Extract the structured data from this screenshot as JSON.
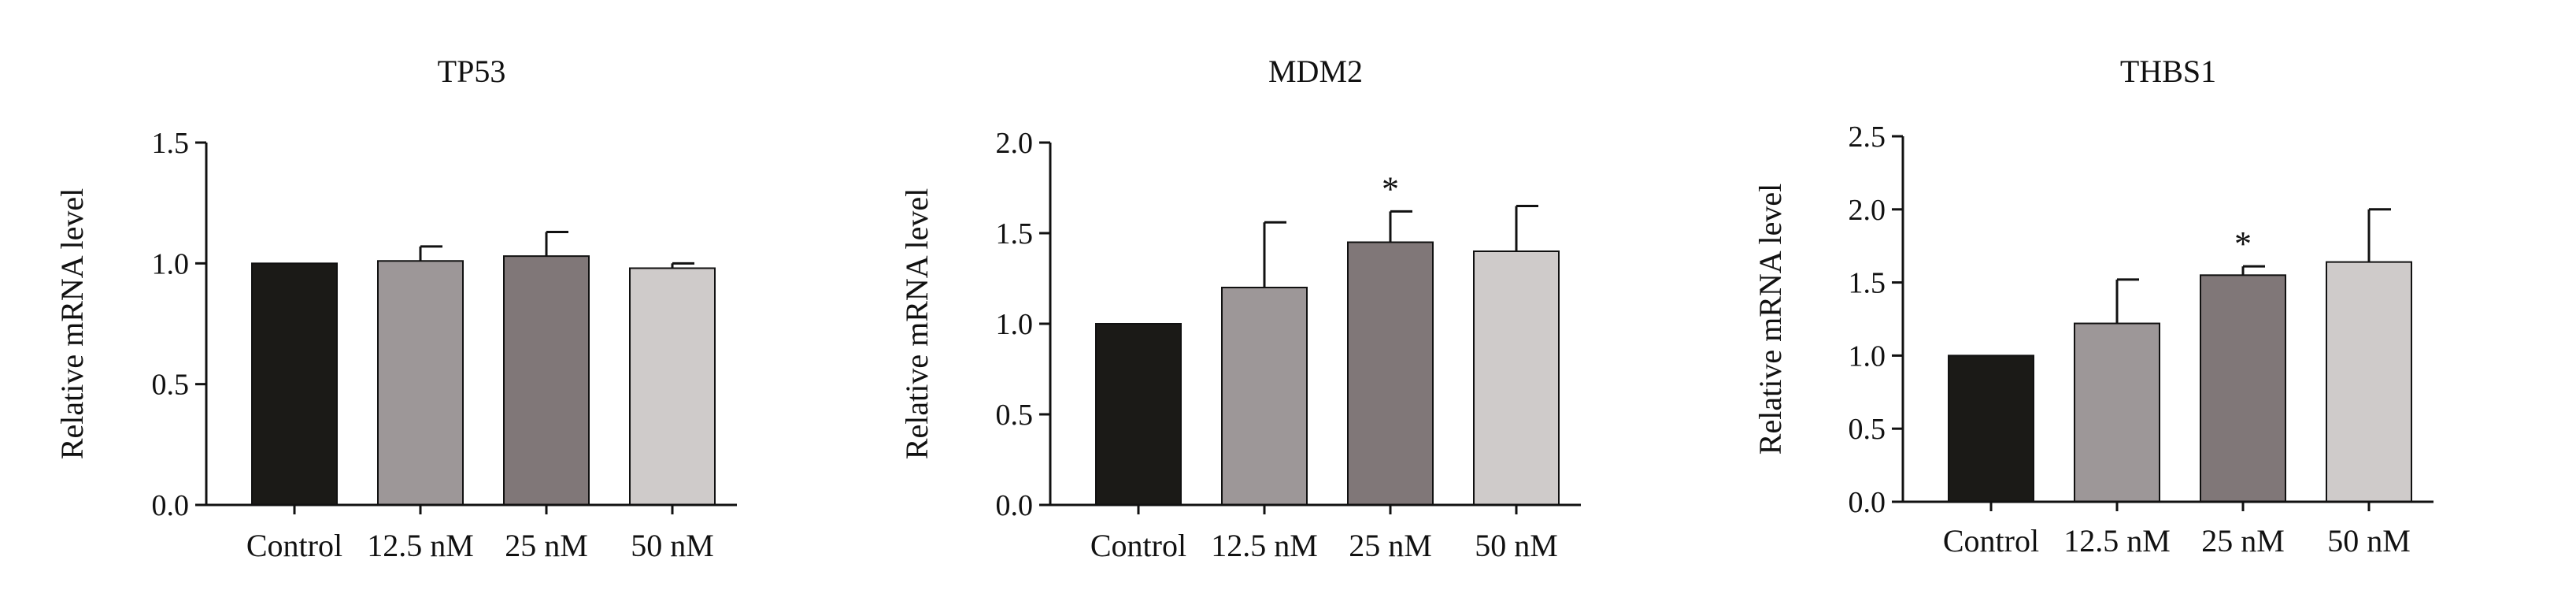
{
  "chart_data": [
    {
      "type": "bar",
      "title": "TP53",
      "ylabel": "Relative mRNA level",
      "xlabel": "",
      "categories": [
        "Control",
        "12.5 nM",
        "25 nM",
        "50 nM"
      ],
      "values": [
        1.0,
        1.01,
        1.03,
        0.98
      ],
      "errors": [
        0.0,
        0.06,
        0.1,
        0.02
      ],
      "significance": [
        "",
        "",
        "",
        ""
      ],
      "colors": [
        "#1b1a17",
        "#9d9798",
        "#807778",
        "#cfcbca"
      ],
      "ylim": [
        0,
        1.5
      ],
      "yticks": [
        0.0,
        0.5,
        1.0,
        1.5
      ],
      "ytick_labels": [
        "0.0",
        "0.5",
        "1.0",
        "1.5"
      ],
      "grid": false,
      "legend": "none"
    },
    {
      "type": "bar",
      "title": "MDM2",
      "ylabel": "Relative mRNA level",
      "xlabel": "",
      "categories": [
        "Control",
        "12.5 nM",
        "25 nM",
        "50 nM"
      ],
      "values": [
        1.0,
        1.2,
        1.45,
        1.4
      ],
      "errors": [
        0.0,
        0.36,
        0.17,
        0.25
      ],
      "significance": [
        "",
        "",
        "*",
        ""
      ],
      "colors": [
        "#1b1a17",
        "#9d9798",
        "#807778",
        "#cfcbca"
      ],
      "ylim": [
        0,
        2.0
      ],
      "yticks": [
        0.0,
        0.5,
        1.0,
        1.5,
        2.0
      ],
      "ytick_labels": [
        "0.0",
        "0.5",
        "1.0",
        "1.5",
        "2.0"
      ],
      "grid": false,
      "legend": "none"
    },
    {
      "type": "bar",
      "title": "THBS1",
      "ylabel": "Relative mRNA level",
      "xlabel": "",
      "categories": [
        "Control",
        "12.5 nM",
        "25 nM",
        "50 nM"
      ],
      "values": [
        1.0,
        1.22,
        1.55,
        1.64
      ],
      "errors": [
        0.0,
        0.3,
        0.06,
        0.36
      ],
      "significance": [
        "",
        "",
        "*",
        ""
      ],
      "colors": [
        "#1b1a17",
        "#9d9798",
        "#807778",
        "#cfcbca"
      ],
      "ylim": [
        0,
        2.5
      ],
      "yticks": [
        0.0,
        0.5,
        1.0,
        1.5,
        2.0,
        2.5
      ],
      "ytick_labels": [
        "0.0",
        "0.5",
        "1.0",
        "1.5",
        "2.0",
        "2.5"
      ],
      "grid": false,
      "legend": "none"
    }
  ]
}
